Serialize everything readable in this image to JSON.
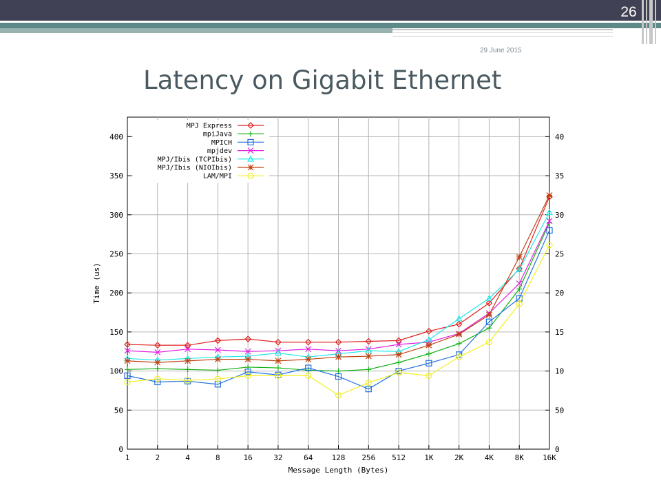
{
  "slide": {
    "page_number": "26",
    "date": "29 June 2015",
    "title": "Latency on Gigabit Ethernet"
  },
  "chart_data": {
    "type": "line",
    "xlabel": "Message Length (Bytes)",
    "ylabel": "Time (us)",
    "x": [
      "1",
      "2",
      "4",
      "8",
      "16",
      "32",
      "64",
      "128",
      "256",
      "512",
      "1K",
      "2K",
      "4K",
      "8K",
      "16K"
    ],
    "ylim": [
      0,
      425
    ],
    "yticks": [
      "0",
      "50",
      "100",
      "150",
      "200",
      "250",
      "300",
      "350",
      "400"
    ],
    "grid": true,
    "legend_position": "top-left",
    "series": [
      {
        "name": "MPJ Express",
        "color": "#e02020",
        "marker": "diamond",
        "values": [
          134,
          133,
          133,
          139,
          141,
          137,
          137,
          137,
          138,
          139,
          151,
          160,
          187,
          231,
          323
        ]
      },
      {
        "name": "mpiJava",
        "color": "#10b010",
        "marker": "plus",
        "values": [
          102,
          103,
          102,
          101,
          105,
          104,
          101,
          100,
          102,
          111,
          122,
          135,
          155,
          205,
          290
        ]
      },
      {
        "name": "MPICH",
        "color": "#2070e0",
        "marker": "square",
        "values": [
          94,
          86,
          87,
          83,
          99,
          95,
          104,
          93,
          77,
          100,
          110,
          121,
          163,
          193,
          280
        ]
      },
      {
        "name": "mpjdev",
        "color": "#e020e0",
        "marker": "x",
        "values": [
          126,
          124,
          128,
          127,
          125,
          126,
          128,
          126,
          128,
          134,
          137,
          148,
          174,
          212,
          292
        ]
      },
      {
        "name": "MPJ/Ibis (TCPIbis)",
        "color": "#20e8e8",
        "marker": "triangle",
        "values": [
          116,
          114,
          116,
          118,
          119,
          123,
          118,
          122,
          126,
          125,
          140,
          167,
          193,
          230,
          303
        ]
      },
      {
        "name": "MPJ/Ibis (NIOIbis)",
        "color": "#c04010",
        "marker": "star",
        "values": [
          113,
          111,
          113,
          115,
          115,
          113,
          115,
          118,
          119,
          121,
          133,
          147,
          172,
          246,
          325
        ]
      },
      {
        "name": "LAM/MPI",
        "color": "#f0f020",
        "marker": "circle",
        "values": [
          86,
          90,
          88,
          90,
          94,
          94,
          94,
          69,
          85,
          98,
          94,
          118,
          137,
          186,
          261
        ]
      }
    ]
  }
}
